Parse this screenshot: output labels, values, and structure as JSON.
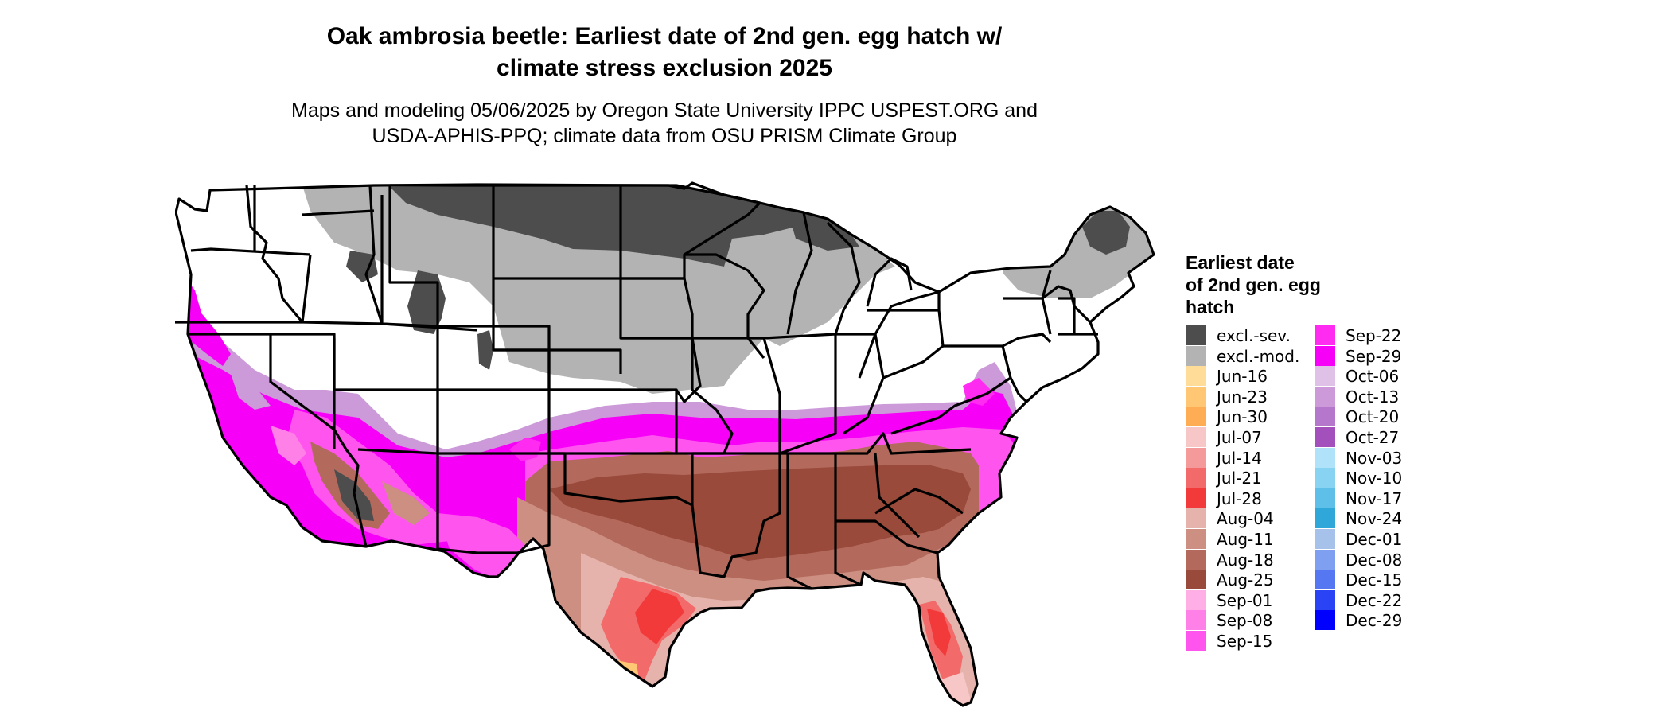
{
  "title_line1": "Oak ambrosia beetle: Earliest date of 2nd gen. egg hatch w/",
  "title_line2": "climate stress exclusion 2025",
  "subtitle_line1": "Maps and modeling 05/06/2025 by Oregon State University IPPC USPEST.ORG and",
  "subtitle_line2": "USDA-APHIS-PPQ; climate data from OSU PRISM Climate Group",
  "legend": {
    "title_lines": [
      "Earliest date",
      "of 2nd gen. egg",
      "hatch"
    ],
    "items": [
      {
        "label": "excl.-sev.",
        "color": "#4d4d4d"
      },
      {
        "label": "excl.-mod.",
        "color": "#b3b3b3"
      },
      {
        "label": "Jun-16",
        "color": "#ffdd99"
      },
      {
        "label": "Jun-23",
        "color": "#ffc673"
      },
      {
        "label": "Jun-30",
        "color": "#ffad55"
      },
      {
        "label": "Jul-07",
        "color": "#f7c6c6"
      },
      {
        "label": "Jul-14",
        "color": "#f59a9a"
      },
      {
        "label": "Jul-21",
        "color": "#f26a6a"
      },
      {
        "label": "Jul-28",
        "color": "#f23a3a"
      },
      {
        "label": "Aug-04",
        "color": "#e5b3ab"
      },
      {
        "label": "Aug-11",
        "color": "#cc8f82"
      },
      {
        "label": "Aug-18",
        "color": "#b36a5c"
      },
      {
        "label": "Aug-25",
        "color": "#994a3a"
      },
      {
        "label": "Sep-01",
        "color": "#ffaee6"
      },
      {
        "label": "Sep-08",
        "color": "#ff80e6"
      },
      {
        "label": "Sep-15",
        "color": "#ff55ee"
      },
      {
        "label": "Sep-22",
        "color": "#ff2bf0"
      },
      {
        "label": "Sep-29",
        "color": "#f700f7"
      },
      {
        "label": "Oct-06",
        "color": "#dfc0e6"
      },
      {
        "label": "Oct-13",
        "color": "#cc9ad9"
      },
      {
        "label": "Oct-20",
        "color": "#b577cc"
      },
      {
        "label": "Oct-27",
        "color": "#a350bd"
      },
      {
        "label": "Nov-03",
        "color": "#b0e3fa"
      },
      {
        "label": "Nov-10",
        "color": "#88d3f2"
      },
      {
        "label": "Nov-17",
        "color": "#5ebfe8"
      },
      {
        "label": "Nov-24",
        "color": "#2fa7d9"
      },
      {
        "label": "Dec-01",
        "color": "#a6c2ea"
      },
      {
        "label": "Dec-08",
        "color": "#7f9ff0"
      },
      {
        "label": "Dec-15",
        "color": "#5577f2"
      },
      {
        "label": "Dec-22",
        "color": "#2a44f5"
      },
      {
        "label": "Dec-29",
        "color": "#0000ff"
      }
    ]
  }
}
